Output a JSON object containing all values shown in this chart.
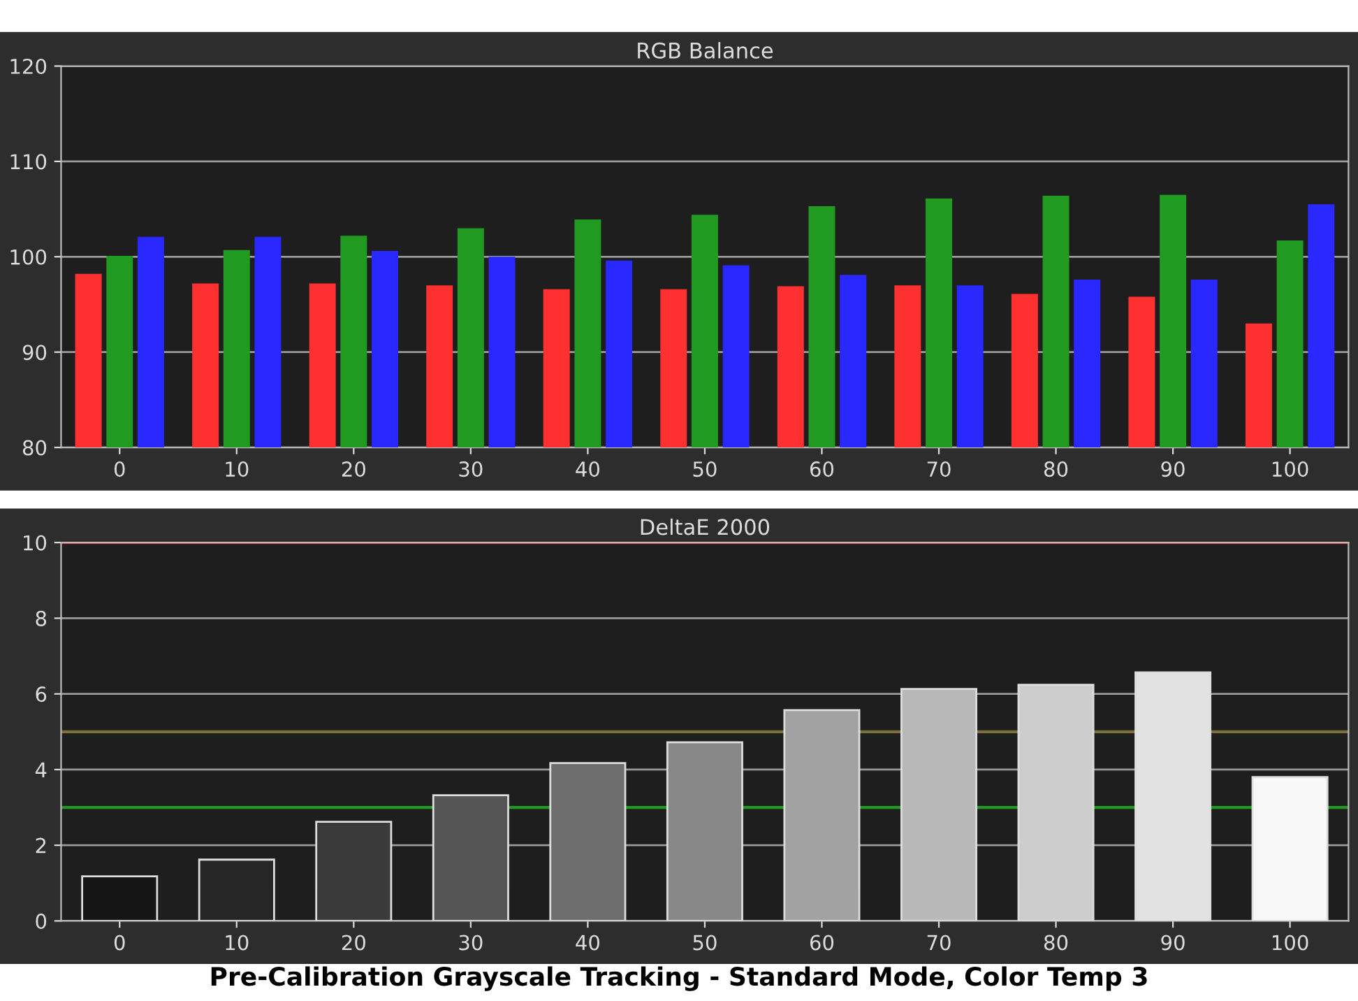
{
  "chart_data": [
    {
      "type": "bar",
      "title": "RGB Balance",
      "categories": [
        "0",
        "10",
        "20",
        "30",
        "40",
        "50",
        "60",
        "70",
        "80",
        "90",
        "100"
      ],
      "series": [
        {
          "color": "#ff3030",
          "values": [
            98.2,
            97.2,
            97.2,
            97.0,
            96.6,
            96.6,
            96.9,
            97.0,
            96.1,
            95.8,
            93.0
          ]
        },
        {
          "color": "#209a20",
          "values": [
            100.1,
            100.7,
            102.2,
            103.0,
            103.9,
            104.4,
            105.3,
            106.1,
            106.4,
            106.5,
            101.7
          ]
        },
        {
          "color": "#2828ff",
          "values": [
            102.1,
            102.1,
            100.6,
            100.0,
            99.6,
            99.1,
            98.1,
            97.0,
            97.6,
            97.6,
            105.5
          ]
        }
      ],
      "ylim": [
        80,
        120
      ],
      "yticks": [
        80,
        90,
        100,
        110,
        120
      ],
      "grid": "y"
    },
    {
      "type": "bar",
      "title": "DeltaE 2000",
      "categories": [
        "0",
        "10",
        "20",
        "30",
        "40",
        "50",
        "60",
        "70",
        "80",
        "90",
        "100"
      ],
      "values": [
        1.18,
        1.62,
        2.62,
        3.32,
        4.17,
        4.72,
        5.57,
        6.13,
        6.24,
        6.57,
        3.8
      ],
      "colors": [
        "#151515",
        "#262626",
        "#3a3a3a",
        "#555555",
        "#6e6e6e",
        "#888888",
        "#a2a2a2",
        "#b8b8b8",
        "#cdcdcd",
        "#e2e2e2",
        "#f8f8f8"
      ],
      "ylim": [
        0,
        10
      ],
      "yticks": [
        0,
        2,
        4,
        6,
        8,
        10
      ],
      "grid": "y",
      "ref_lines": [
        {
          "axis": "y",
          "value": 10,
          "color": "#e03030"
        },
        {
          "axis": "y",
          "value": 5,
          "color": "#7a7040"
        },
        {
          "axis": "y",
          "value": 3,
          "color": "#1f9a1f"
        }
      ],
      "annotations": [
        "Pre-Calibration Grayscale Tracking - Standard Mode, Color Temp 3"
      ]
    }
  ]
}
